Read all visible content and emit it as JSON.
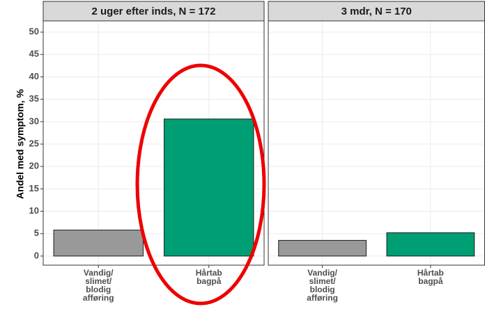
{
  "chart_data": [
    {
      "type": "bar",
      "title": "2 uger efter inds, N = 172",
      "ylabel": "Andel med symptom, %",
      "categories": [
        "Vandig/\nslimet/\nblodig\nafføring",
        "Hårtab\nbagpå"
      ],
      "values": [
        5.8,
        30.6
      ],
      "colors": [
        "#999999",
        "#009e73"
      ],
      "ylim": [
        -2.5,
        52.5
      ],
      "yticks": [
        0,
        5,
        10,
        15,
        20,
        25,
        30,
        35,
        40,
        45,
        50
      ],
      "grid": true
    },
    {
      "type": "bar",
      "title": "3 mdr, N = 170",
      "categories": [
        "Vandig/\nslimet/\nblodig\nafføring",
        "Hårtab\nbagpå"
      ],
      "values": [
        3.5,
        5.2
      ],
      "colors": [
        "#999999",
        "#009e73"
      ],
      "ylim": [
        -2.5,
        52.5
      ],
      "yticks": [
        0,
        5,
        10,
        15,
        20,
        25,
        30,
        35,
        40,
        45,
        50
      ],
      "grid": true
    }
  ]
}
